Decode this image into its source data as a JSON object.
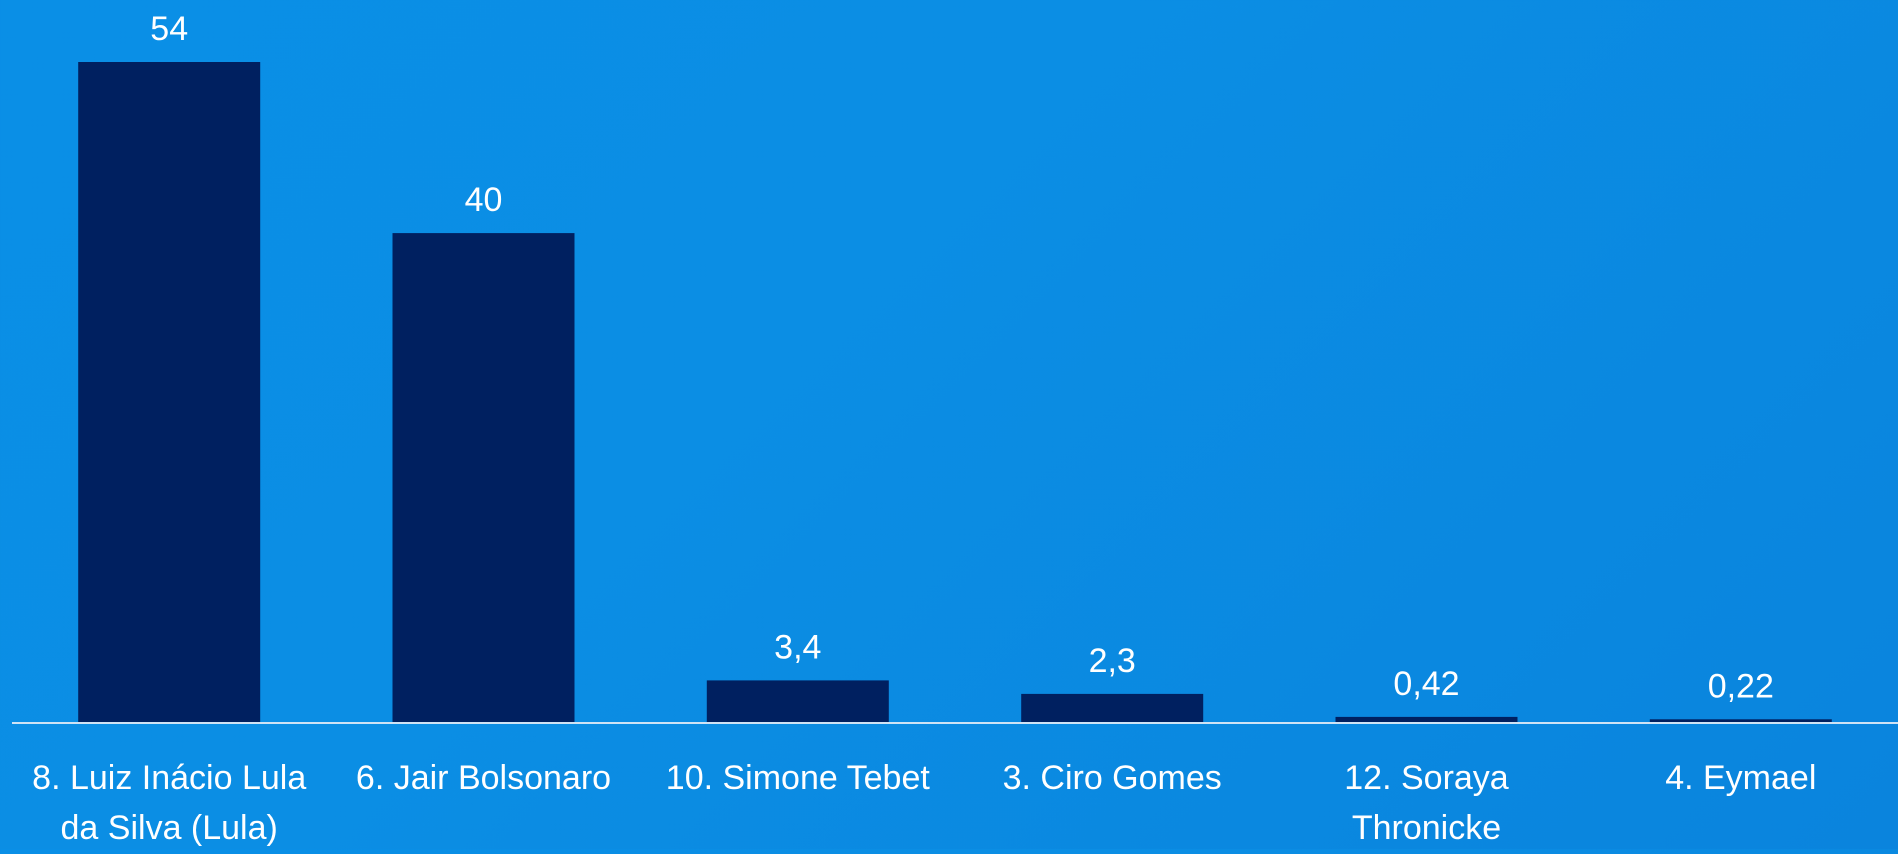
{
  "chart_data": {
    "type": "bar",
    "title": "",
    "xlabel": "",
    "ylabel": "",
    "categories": [
      "8. Luiz Inácio Lula da Silva (Lula)",
      "6. Jair Bolsonaro",
      "10. Simone Tebet",
      "3. Ciro Gomes",
      "12. Soraya Thronicke",
      "4. Eymael"
    ],
    "category_lines": [
      [
        "8. Luiz Inácio Lula",
        "da Silva (Lula)"
      ],
      [
        "6. Jair Bolsonaro"
      ],
      [
        "10. Simone Tebet"
      ],
      [
        "3. Ciro Gomes"
      ],
      [
        "12. Soraya",
        "Thronicke"
      ],
      [
        "4. Eymael"
      ]
    ],
    "values": [
      54,
      40,
      3.4,
      2.3,
      0.42,
      0.22
    ],
    "value_labels": [
      "54",
      "40",
      "3,4",
      "2,3",
      "0,42",
      "0,22"
    ],
    "ylim": [
      0,
      54
    ],
    "grid": false,
    "legend": "none",
    "colors": {
      "bar": "#002060",
      "text": "#ffffff",
      "axis": "#cfe3f5"
    }
  }
}
